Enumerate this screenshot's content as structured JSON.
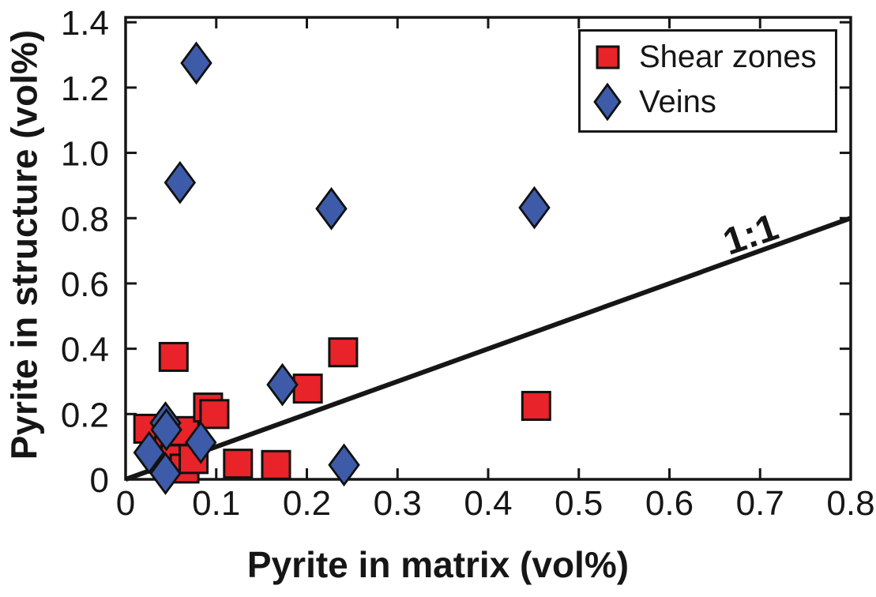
{
  "chart_data": {
    "type": "scatter",
    "title": "",
    "xlabel": "Pyrite in matrix (vol%)",
    "ylabel": "Pyrite in structure (vol%)",
    "xlim": [
      0,
      0.8
    ],
    "ylim": [
      0,
      1.415
    ],
    "grid": false,
    "background": "#ffffff",
    "axis_color": "#161616",
    "marker_stroke": "#111111",
    "x_ticks": {
      "values": [
        0,
        0.1,
        0.2,
        0.3,
        0.4,
        0.5,
        0.6,
        0.7,
        0.8
      ],
      "labels": [
        "0",
        "0.1",
        "0.2",
        "0.3",
        "0.4",
        "0.5",
        "0.6",
        "0.7",
        "0.8"
      ]
    },
    "y_ticks": {
      "values": [
        0,
        0.2,
        0.4,
        0.6,
        0.8,
        1.0,
        1.2,
        1.4
      ],
      "labels": [
        "0",
        "0.2",
        "0.4",
        "0.6",
        "0.8",
        "1.0",
        "1.2",
        "1.4"
      ]
    },
    "series": [
      {
        "name": "Shear zones",
        "marker": "square",
        "fill": "#e82329",
        "points": [
          [
            0.025,
            0.155
          ],
          [
            0.048,
            0.088
          ],
          [
            0.053,
            0.375
          ],
          [
            0.055,
            0.062
          ],
          [
            0.065,
            0.148
          ],
          [
            0.065,
            0.033
          ],
          [
            0.075,
            0.062
          ],
          [
            0.091,
            0.22
          ],
          [
            0.098,
            0.2
          ],
          [
            0.124,
            0.048
          ],
          [
            0.166,
            0.044
          ],
          [
            0.201,
            0.278
          ],
          [
            0.24,
            0.389
          ],
          [
            0.453,
            0.225
          ]
        ]
      },
      {
        "name": "Veins",
        "marker": "diamond",
        "fill": "#3d5ba8",
        "points": [
          [
            0.026,
            0.082
          ],
          [
            0.044,
            0.173
          ],
          [
            0.045,
            0.152
          ],
          [
            0.044,
            0.018
          ],
          [
            0.06,
            0.909
          ],
          [
            0.078,
            1.275
          ],
          [
            0.083,
            0.113
          ],
          [
            0.173,
            0.29
          ],
          [
            0.227,
            0.829
          ],
          [
            0.241,
            0.044
          ],
          [
            0.451,
            0.832
          ]
        ]
      }
    ],
    "reference_line": {
      "label": "1:1",
      "x": [
        0,
        0.8
      ],
      "y": [
        0,
        0.8
      ],
      "color": "#161616"
    },
    "legend": {
      "position": "top-right"
    }
  }
}
